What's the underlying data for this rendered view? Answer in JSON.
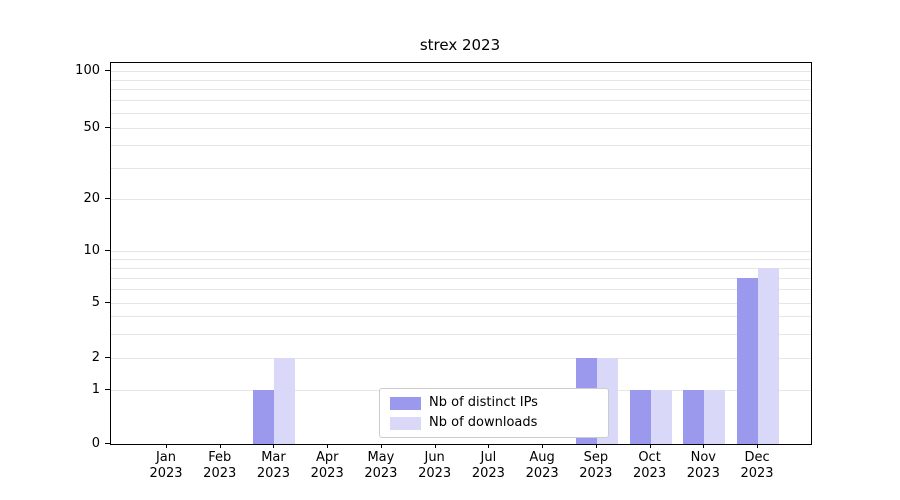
{
  "chart_data": {
    "type": "bar",
    "title": "strex 2023",
    "categories": [
      "Jan",
      "Feb",
      "Mar",
      "Apr",
      "May",
      "Jun",
      "Jul",
      "Aug",
      "Sep",
      "Oct",
      "Nov",
      "Dec"
    ],
    "category_year": "2023",
    "series": [
      {
        "name": "Nb of distinct IPs",
        "color": "#9a99ee",
        "values": [
          0,
          0,
          1,
          0,
          0,
          0,
          0,
          0,
          2,
          1,
          1,
          7
        ]
      },
      {
        "name": "Nb of downloads",
        "color": "#d9d8f8",
        "values": [
          0,
          0,
          2,
          0,
          0,
          0,
          0,
          0,
          2,
          1,
          1,
          8
        ]
      }
    ],
    "yscale": "symlog",
    "yticks": [
      0,
      1,
      2,
      5,
      10,
      20,
      50,
      100
    ],
    "minor_gridlines": [
      3,
      4,
      6,
      7,
      8,
      9,
      30,
      40,
      60,
      70,
      80,
      90
    ],
    "ylim": [
      0,
      100
    ],
    "grid": "horizontal",
    "legend_position": "lower center inside plot"
  }
}
